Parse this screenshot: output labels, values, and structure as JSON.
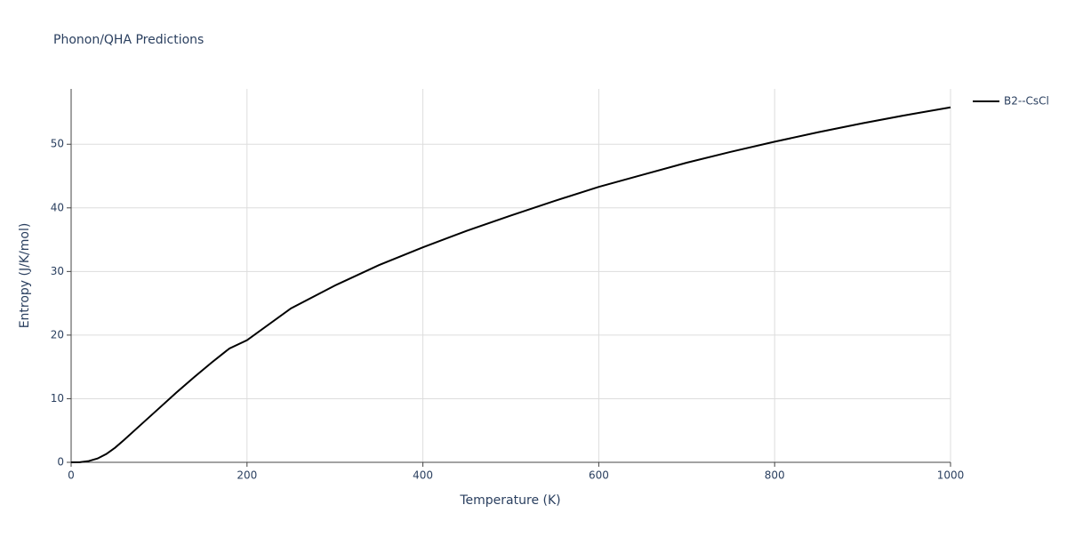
{
  "chart_data": {
    "type": "line",
    "title": "Phonon/QHA Predictions",
    "x_label": "Temperature (K)",
    "y_label": "Entropy (J/K/mol)",
    "x": [
      0,
      10,
      20,
      30,
      40,
      50,
      60,
      80,
      100,
      120,
      140,
      160,
      180,
      200,
      250,
      300,
      350,
      400,
      450,
      500,
      550,
      600,
      650,
      700,
      750,
      800,
      850,
      900,
      950,
      1000
    ],
    "series": [
      {
        "name": "B2--CsCl",
        "color": "#000000",
        "values": [
          0,
          0.02,
          0.2,
          0.6,
          1.3,
          2.3,
          3.5,
          6.0,
          8.5,
          11.0,
          13.4,
          15.7,
          17.9,
          19.2,
          24.2,
          27.8,
          31.0,
          33.8,
          36.4,
          38.8,
          41.1,
          43.3,
          45.2,
          47.1,
          48.8,
          50.4,
          51.9,
          53.3,
          54.6,
          55.8
        ]
      }
    ],
    "xlim": [
      0,
      1000
    ],
    "xticks": [
      0,
      200,
      400,
      600,
      800,
      1000
    ],
    "ylim": [
      0,
      58.7
    ],
    "yticks": [
      0,
      10,
      20,
      30,
      40,
      50
    ],
    "grid": true,
    "legend": "right"
  }
}
